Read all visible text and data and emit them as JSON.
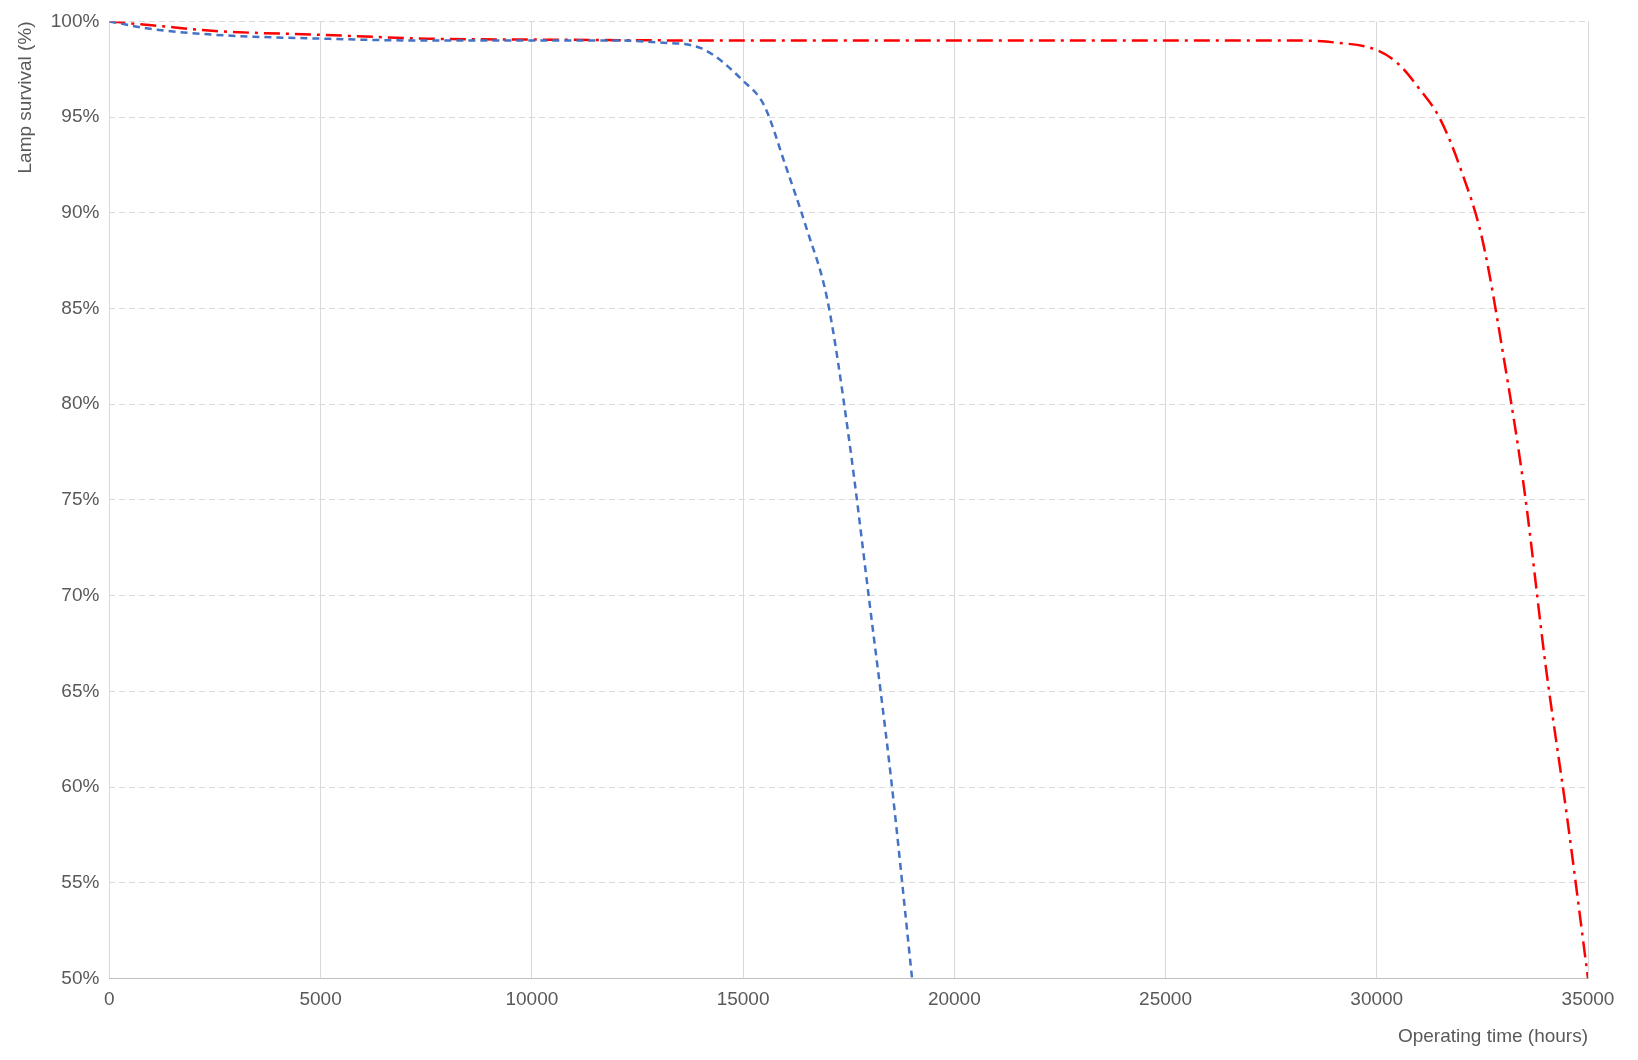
{
  "chart_data": {
    "type": "line",
    "xlabel": "Operating time (hours)",
    "ylabel": "Lamp survival (%)",
    "xlim": [
      0,
      35000
    ],
    "xticks": [
      0,
      5000,
      10000,
      15000,
      20000,
      25000,
      30000,
      35000
    ],
    "ylim": [
      50,
      100
    ],
    "yticks": [
      {
        "value": 50,
        "label": "50%"
      },
      {
        "value": 55,
        "label": "55%"
      },
      {
        "value": 60,
        "label": "60%"
      },
      {
        "value": 65,
        "label": "65%"
      },
      {
        "value": 70,
        "label": "70%"
      },
      {
        "value": 75,
        "label": "75%"
      },
      {
        "value": 80,
        "label": "80%"
      },
      {
        "value": 85,
        "label": "85%"
      },
      {
        "value": 90,
        "label": "90%"
      },
      {
        "value": 95,
        "label": "95%"
      },
      {
        "value": 100,
        "label": "100%"
      }
    ],
    "grid": true,
    "legend": false,
    "marker": "none",
    "series": [
      {
        "color": "#4472c4",
        "line_style": "dashed",
        "x": [
          0,
          1000,
          2500,
          5000,
          7500,
          10000,
          12000,
          13000,
          14000,
          15000,
          15500,
          16000,
          16500,
          17000,
          17500,
          18000,
          18500,
          19000
        ],
        "values": [
          100,
          99.6,
          99.3,
          99.1,
          99.0,
          99.0,
          99.0,
          98.9,
          98.6,
          96.9,
          95.6,
          92.5,
          89.2,
          85.4,
          78.3,
          69.5,
          60.5,
          50
        ]
      },
      {
        "color": "#ff0000",
        "line_style": "dashdot",
        "x": [
          0,
          1000,
          2500,
          5000,
          7500,
          10000,
          15000,
          20000,
          25000,
          28000,
          29000,
          30000,
          30500,
          31000,
          31500,
          32000,
          32500,
          33000,
          33500,
          34000,
          34500,
          35000
        ],
        "values": [
          100,
          99.8,
          99.5,
          99.3,
          99.1,
          99.05,
          99.0,
          99.0,
          99.0,
          99.0,
          98.9,
          98.5,
          97.8,
          96.5,
          94.9,
          92.2,
          88.6,
          82.5,
          75.4,
          66.3,
          58.5,
          50
        ]
      }
    ]
  }
}
